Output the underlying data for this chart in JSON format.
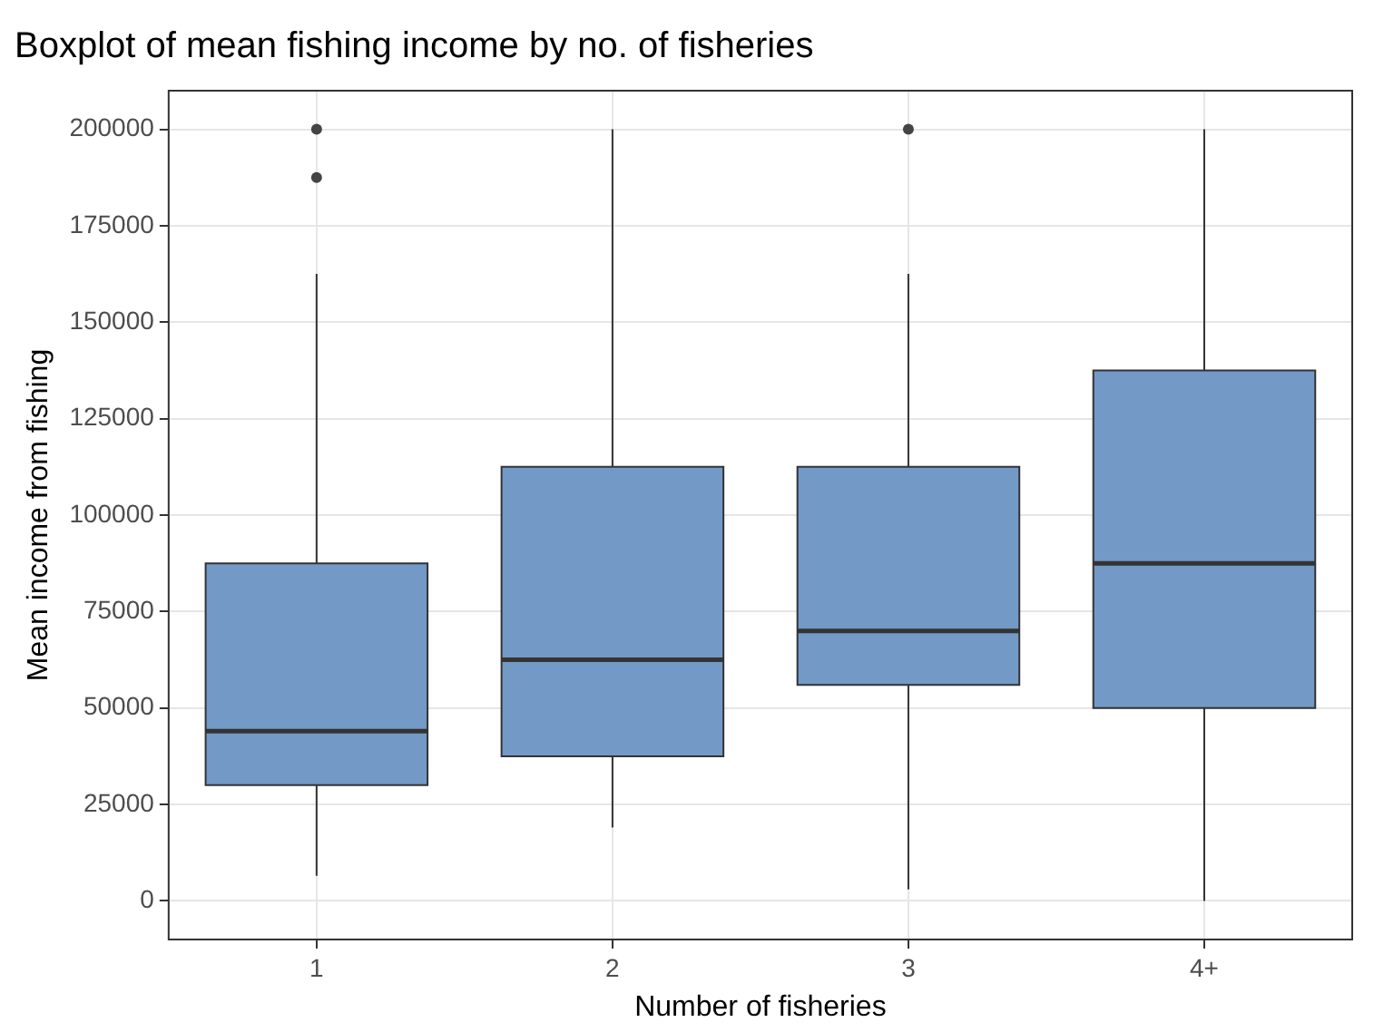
{
  "chart_data": {
    "type": "box",
    "title": "Boxplot of mean fishing income by no. of fisheries",
    "xlabel": "Number of fisheries",
    "ylabel": "Mean income from fishing",
    "categories": [
      "1",
      "2",
      "3",
      "4+"
    ],
    "color": "#7399c6",
    "boxes": [
      {
        "low": 6500,
        "q1": 30000,
        "median": 44000,
        "q3": 87500,
        "high": 162500,
        "outliers": [
          187500,
          200000
        ]
      },
      {
        "low": 19000,
        "q1": 37500,
        "median": 62500,
        "q3": 112500,
        "high": 200000
      },
      {
        "low": 3000,
        "q1": 56000,
        "median": 70000,
        "q3": 112500,
        "high": 162500,
        "outliers": [
          200000
        ]
      },
      {
        "low": 0,
        "q1": 50000,
        "median": 87500,
        "q3": 137500,
        "high": 200000
      }
    ],
    "ylim": [
      -10000,
      210000
    ],
    "yticks": [
      0,
      25000,
      50000,
      75000,
      100000,
      125000,
      150000,
      175000,
      200000
    ],
    "grid": true,
    "legend": false
  }
}
